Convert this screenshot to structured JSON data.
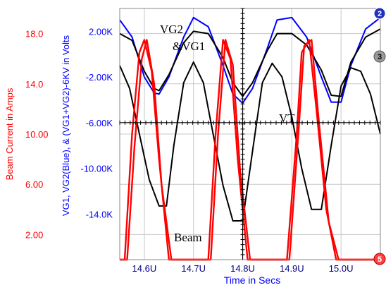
{
  "chart_data": {
    "type": "line",
    "xlabel": "Time in Secs",
    "ylabel_left": "Beam Current  in Amps",
    "ylabel_right": "VG1, VG2(Blue), & (VG1+VG2)-6KV  in Volts",
    "xlim": [
      14.55,
      15.08
    ],
    "x_ticks": [
      {
        "value": 14.6,
        "label": "14.6U"
      },
      {
        "value": 14.7,
        "label": "14.7U"
      },
      {
        "value": 14.8,
        "label": "14.8U"
      },
      {
        "value": 14.9,
        "label": "14.9U"
      },
      {
        "value": 15.0,
        "label": "15.0U"
      }
    ],
    "y_beam_lim": [
      0,
      20
    ],
    "y_beam_ticks": [
      "18.0",
      "14.0",
      "10.00",
      "6.00",
      "2.00"
    ],
    "y_beam_values": [
      18,
      14,
      10,
      6,
      2
    ],
    "y_volt_lim": [
      -18000,
      4000
    ],
    "y_volt_ticks": [
      "2.00K",
      "-2.00K",
      "-6.00K",
      "-10.00K",
      "-14.0K"
    ],
    "y_volt_values": [
      2000,
      -2000,
      -6000,
      -10000,
      -14000
    ],
    "annotations": [
      {
        "text": "VG2"
      },
      {
        "text": "&VG1"
      },
      {
        "text": "VT"
      },
      {
        "text": "Beam"
      }
    ],
    "markers": [
      "2",
      "3",
      "5"
    ],
    "grid": true,
    "series": [
      {
        "axis": "volts",
        "color": "#0000ff",
        "x": [
          14.55,
          14.575,
          14.6,
          14.62,
          14.63,
          14.65,
          14.68,
          14.7,
          14.73,
          14.76,
          14.78,
          14.8,
          14.82,
          14.85,
          14.87,
          14.9,
          14.93,
          14.96,
          14.98,
          15.0,
          15.02,
          15.05,
          15.08
        ],
        "y": [
          3000,
          1500,
          -2000,
          -3400,
          -3500,
          -2000,
          1500,
          3200,
          2400,
          -1000,
          -3500,
          -4300,
          -3000,
          500,
          3000,
          3200,
          1500,
          -2000,
          -4200,
          -4200,
          -1000,
          2200,
          3200
        ]
      },
      {
        "axis": "volts",
        "color": "#000000",
        "x": [
          14.55,
          14.575,
          14.6,
          14.62,
          14.63,
          14.65,
          14.68,
          14.7,
          14.73,
          14.76,
          14.78,
          14.8,
          14.82,
          14.85,
          14.87,
          14.9,
          14.93,
          14.96,
          14.98,
          15.0,
          15.02,
          15.05,
          15.08
        ],
        "y": [
          1800,
          1200,
          -1500,
          -3000,
          -3200,
          -1800,
          1000,
          2000,
          1800,
          -300,
          -2500,
          -3700,
          -2500,
          300,
          1800,
          1800,
          800,
          -1400,
          -3600,
          -3700,
          -700,
          1500,
          2200
        ]
      },
      {
        "axis": "volts",
        "color": "#000000",
        "x": [
          14.55,
          14.57,
          14.59,
          14.61,
          14.63,
          14.645,
          14.66,
          14.68,
          14.7,
          14.72,
          14.74,
          14.76,
          14.78,
          14.8,
          14.82,
          14.84,
          14.86,
          14.88,
          14.9,
          14.92,
          14.94,
          14.96,
          14.98,
          15.0,
          15.02,
          15.04,
          15.06,
          15.08
        ],
        "y": [
          -1000,
          -3000,
          -7000,
          -11000,
          -13300,
          -13300,
          -8000,
          -2500,
          -700,
          -2500,
          -7000,
          -11500,
          -14600,
          -14600,
          -8500,
          -2500,
          -800,
          -2000,
          -5500,
          -10000,
          -13600,
          -13600,
          -8000,
          -2800,
          -1200,
          -1500,
          -3500,
          -7000
        ]
      },
      {
        "axis": "beam",
        "color": "#ff0000",
        "x": [
          14.55,
          14.56,
          14.575,
          14.59,
          14.6,
          14.615,
          14.63,
          14.65,
          14.7,
          14.73,
          14.745,
          14.76,
          14.775,
          14.79,
          14.81,
          14.85,
          14.87,
          14.89,
          14.91,
          14.92,
          14.935,
          14.95,
          14.97,
          14.99,
          15.08
        ],
        "y": [
          0,
          0,
          10,
          16.5,
          17.5,
          15,
          8,
          0,
          0,
          0,
          10,
          17.5,
          16,
          8,
          0,
          0,
          0,
          0,
          10,
          16.5,
          17.5,
          12,
          4,
          0,
          0
        ]
      },
      {
        "axis": "beam",
        "color": "#ff0000",
        "x": [
          14.55,
          14.565,
          14.58,
          14.595,
          14.605,
          14.62,
          14.635,
          14.655,
          14.7,
          14.735,
          14.75,
          14.765,
          14.78,
          14.795,
          14.815,
          14.85,
          14.875,
          14.895,
          14.915,
          14.925,
          14.94,
          14.955,
          14.975,
          14.995,
          15.08
        ],
        "y": [
          0,
          0,
          9,
          16,
          17.5,
          14,
          6,
          0,
          0,
          0,
          10,
          17.5,
          15.5,
          7,
          0,
          0,
          0,
          0,
          11,
          17,
          17.5,
          11,
          3,
          0,
          0
        ]
      }
    ]
  }
}
